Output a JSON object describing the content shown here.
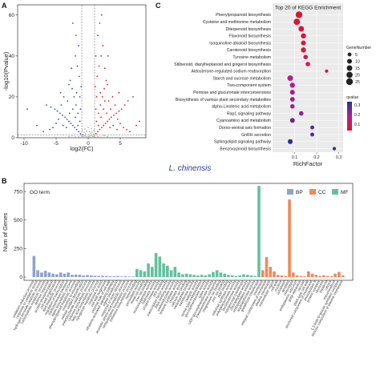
{
  "panels": {
    "a": "A",
    "b": "B",
    "c": "C"
  },
  "species_label": "L. chinensis",
  "volcano": {
    "type": "scatter",
    "xlabel": "log2(FC)",
    "ylabel": "-log10(Pvalue)",
    "xlim": [
      -11,
      9
    ],
    "ylim": [
      0,
      65
    ],
    "xticks": [
      -10,
      -5,
      0,
      5
    ],
    "yticks": [
      0,
      20,
      40,
      60
    ],
    "threshold_lines": {
      "x": [
        -1,
        1
      ],
      "y": 1.3
    },
    "colors": {
      "down": "#3b4fa8",
      "up": "#d8202a",
      "ns": "#b5b5b5"
    },
    "points": {
      "up": [
        [
          1.2,
          2
        ],
        [
          1.5,
          3
        ],
        [
          1.8,
          4
        ],
        [
          2.1,
          5
        ],
        [
          2.4,
          6
        ],
        [
          2.7,
          7
        ],
        [
          3.0,
          8
        ],
        [
          3.3,
          9
        ],
        [
          3.6,
          10
        ],
        [
          4.0,
          11
        ],
        [
          4.4,
          12
        ],
        [
          4.8,
          13
        ],
        [
          5.2,
          14
        ],
        [
          5.7,
          16
        ],
        [
          6.2,
          18
        ],
        [
          7.0,
          20
        ],
        [
          1.3,
          8
        ],
        [
          1.6,
          12
        ],
        [
          1.9,
          16
        ],
        [
          2.2,
          20
        ],
        [
          2.5,
          24
        ],
        [
          2.8,
          28
        ],
        [
          3.2,
          18
        ],
        [
          3.5,
          14
        ],
        [
          1.1,
          25
        ],
        [
          1.4,
          30
        ],
        [
          1.7,
          35
        ],
        [
          2.0,
          40
        ],
        [
          2.3,
          45
        ],
        [
          1.5,
          50
        ],
        [
          1.8,
          56
        ],
        [
          2.1,
          60
        ],
        [
          3.8,
          20
        ],
        [
          4.2,
          16
        ],
        [
          4.6,
          9
        ],
        [
          5.0,
          7
        ],
        [
          5.5,
          5
        ],
        [
          6.0,
          4
        ],
        [
          6.5,
          3
        ],
        [
          7.5,
          6
        ],
        [
          8.0,
          8
        ],
        [
          2.6,
          34
        ],
        [
          3.0,
          26
        ],
        [
          1.2,
          14
        ],
        [
          1.3,
          20
        ],
        [
          2.9,
          12
        ],
        [
          3.4,
          5
        ],
        [
          3.9,
          6
        ],
        [
          4.5,
          4
        ],
        [
          1.6,
          6
        ],
        [
          2.0,
          10
        ],
        [
          2.4,
          14
        ],
        [
          1.2,
          40
        ],
        [
          3.1,
          40
        ],
        [
          4.8,
          22
        ],
        [
          1.9,
          22
        ],
        [
          2.6,
          18
        ]
      ],
      "down": [
        [
          -1.2,
          2
        ],
        [
          -1.5,
          3
        ],
        [
          -1.8,
          4
        ],
        [
          -2.1,
          5
        ],
        [
          -2.4,
          6
        ],
        [
          -2.7,
          7
        ],
        [
          -3.0,
          8
        ],
        [
          -3.3,
          9
        ],
        [
          -3.6,
          10
        ],
        [
          -4.0,
          11
        ],
        [
          -4.4,
          12
        ],
        [
          -4.8,
          13
        ],
        [
          -5.2,
          14
        ],
        [
          -5.8,
          15
        ],
        [
          -6.5,
          16
        ],
        [
          -1.3,
          8
        ],
        [
          -1.6,
          12
        ],
        [
          -1.9,
          16
        ],
        [
          -2.2,
          20
        ],
        [
          -2.5,
          24
        ],
        [
          -2.8,
          28
        ],
        [
          -3.2,
          18
        ],
        [
          -1.1,
          25
        ],
        [
          -1.4,
          30
        ],
        [
          -1.7,
          35
        ],
        [
          -2.0,
          40
        ],
        [
          -1.5,
          45
        ],
        [
          -1.9,
          50
        ],
        [
          -2.4,
          56
        ],
        [
          -3.8,
          20
        ],
        [
          -4.2,
          16
        ],
        [
          -4.6,
          9
        ],
        [
          -5.0,
          7
        ],
        [
          -5.5,
          5
        ],
        [
          -6.0,
          4
        ],
        [
          -7.0,
          3
        ],
        [
          -8.0,
          6
        ],
        [
          -9.5,
          14
        ],
        [
          -2.6,
          34
        ],
        [
          -3.0,
          26
        ],
        [
          -1.2,
          14
        ],
        [
          -1.3,
          20
        ],
        [
          -2.9,
          12
        ],
        [
          -3.4,
          5
        ],
        [
          -3.9,
          6
        ],
        [
          -1.6,
          6
        ],
        [
          -2.0,
          10
        ],
        [
          -2.4,
          14
        ],
        [
          -4.3,
          22
        ],
        [
          -1.8,
          22
        ]
      ],
      "ns": [
        [
          -0.9,
          0.4
        ],
        [
          -0.7,
          0.8
        ],
        [
          -0.5,
          1.1
        ],
        [
          -0.3,
          0.6
        ],
        [
          -0.1,
          0.3
        ],
        [
          0.1,
          0.5
        ],
        [
          0.3,
          0.9
        ],
        [
          0.5,
          1.2
        ],
        [
          0.7,
          0.7
        ],
        [
          0.9,
          0.5
        ],
        [
          -0.8,
          1.6
        ],
        [
          -0.4,
          2.0
        ],
        [
          0.0,
          1.5
        ],
        [
          0.4,
          2.2
        ],
        [
          0.8,
          1.8
        ],
        [
          -0.6,
          2.6
        ],
        [
          0.6,
          2.8
        ],
        [
          -0.2,
          3.2
        ],
        [
          0.2,
          3.0
        ],
        [
          -1.0,
          1.0
        ],
        [
          1.0,
          1.0
        ],
        [
          -1.5,
          0.5
        ],
        [
          1.5,
          0.6
        ],
        [
          -2.0,
          0.4
        ],
        [
          2.0,
          0.3
        ],
        [
          -3.0,
          0.6
        ],
        [
          3.0,
          0.5
        ],
        [
          -0.9,
          3.5
        ],
        [
          0.9,
          3.6
        ],
        [
          -0.5,
          4.2
        ],
        [
          0.5,
          4.5
        ],
        [
          0.0,
          5.0
        ],
        [
          -0.7,
          0.2
        ],
        [
          0.7,
          0.2
        ],
        [
          -2.5,
          1.0
        ],
        [
          2.5,
          1.1
        ]
      ]
    }
  },
  "kegg": {
    "type": "scatter",
    "title": "Top 20 of KEGG Enrichment",
    "xlabel": "RichFactor",
    "xlim": [
      0,
      0.32
    ],
    "xticks": [
      0.1,
      0.2,
      0.3
    ],
    "pathways": [
      "Phenylpropanoid biosynthesis",
      "Cysteine and methionine metabolism",
      "Diterpenoid biosynthesis",
      "Flavonoid biosynthesis",
      "Isoquinoline alkaloid biosynthesis",
      "Carotenoid biosynthesis",
      "Tyrosine metabolism",
      "Stilbenoid, diarylheptanoid and gingerol biosynthesis",
      "Aldosterone-regulated sodium reabsorption",
      "Starch and sucrose metabolism",
      "Two-component system",
      "Pentose and glucuronate interconversions",
      "Biosynthesis of various plant secondary metabolites",
      "alpha-Linolenic acid metabolism",
      "Rap1 signaling pathway",
      "Cyanoamino acid metabolism",
      "Dorso-ventral axis formation",
      "GnRH secretion",
      "Sphingolipid signaling pathway",
      "Benzoxazinoid biosynthesis"
    ],
    "rich_factor": [
      0.12,
      0.11,
      0.13,
      0.14,
      0.14,
      0.14,
      0.15,
      0.16,
      0.245,
      0.08,
      0.09,
      0.09,
      0.09,
      0.09,
      0.13,
      0.09,
      0.18,
      0.18,
      0.08,
      0.28
    ],
    "gene_number": [
      25,
      22,
      15,
      12,
      10,
      12,
      8,
      8,
      3,
      15,
      12,
      10,
      9,
      8,
      8,
      10,
      5,
      5,
      10,
      3
    ],
    "qvalue": [
      0.02,
      0.03,
      0.04,
      0.05,
      0.05,
      0.06,
      0.08,
      0.08,
      0.06,
      0.2,
      0.2,
      0.22,
      0.22,
      0.22,
      0.25,
      0.3,
      0.35,
      0.35,
      0.4,
      0.4
    ],
    "legend": {
      "size_title": "GeneNumber",
      "size_levels": [
        5,
        10,
        15,
        20,
        25
      ],
      "color_title": "qvalue",
      "color_ticks": [
        0.3,
        0.2,
        0.1
      ]
    },
    "colors": {
      "low": "#e0152a",
      "mid": "#b01e8e",
      "high": "#2a2f8f"
    }
  },
  "go": {
    "type": "bar",
    "panel_title": "GO term",
    "ylabel": "Num of Genes",
    "ylim": [
      0,
      800
    ],
    "yticks": [
      0,
      250,
      500,
      750
    ],
    "legend": [
      {
        "label": "BP",
        "color": "#8ea3cc"
      },
      {
        "label": "CC",
        "color": "#ef8a5a"
      },
      {
        "label": "MF",
        "color": "#62c2a0"
      }
    ],
    "bp": {
      "categories": [
        "oxidation-reduction process",
        "response to oxidative stress",
        "hydrogen peroxide catabolic process",
        "carbohydrate metabolic process",
        "defense response",
        "protein phosphorylation",
        "cell wall organization",
        "lipid metabolic process",
        "regulation of transcription",
        "transmembrane transport",
        "lignin biosynthetic process",
        "phenylpropanoid metabolic process",
        "response to wounding",
        "cellular oxidant detoxification",
        "polysaccharide catabolic process",
        "cellulose biosynthetic process",
        "fatty acid biosynthetic process",
        "xyloglucan metabolic process",
        "response to auxin",
        "cell wall biogenesis",
        "external side of cell wall",
        "ethylene-activated signaling pathway",
        "signal transduction",
        "response to biotic stimulus",
        "aromatic amino acid metabolic process",
        "sesquiterpene biosynthetic process",
        "trehalose biosynthetic process"
      ],
      "values": [
        185,
        60,
        40,
        55,
        40,
        30,
        25,
        40,
        30,
        40,
        20,
        22,
        20,
        15,
        18,
        15,
        12,
        10,
        12,
        10,
        8,
        8,
        10,
        6,
        8,
        6,
        5
      ]
    },
    "mf": {
      "categories": [
        "heme binding",
        "peroxidase activity",
        "metal ion binding",
        "iron ion binding",
        "monooxygenase activity",
        "hydrolase activity",
        "protein kinase activity",
        "ATP binding",
        "transcription factor activity",
        "DNA-binding activity",
        "oxidoreductase activity",
        "terpene synthase activity",
        "chitinase activity",
        "calcium ion binding",
        "carbohydrate binding",
        "transferase activity",
        "catalytic activity",
        "serine-type endopeptidase",
        "glucosyltransferase activity",
        "lyase activity",
        "UDP-glycosyltransferase activity",
        "transmembrane transporter",
        "magnesium ion binding",
        "zinc ion binding",
        "ADP binding",
        "cellulose synthase activity",
        "polygalacturonase activity",
        "pectinesterase activity",
        "xyloglucosyl transferase",
        "chlorophyllase activity",
        "endopeptidase inhibitor",
        "acyltransferase activity",
        "glutathione transferase"
      ],
      "values": [
        70,
        60,
        50,
        120,
        90,
        210,
        180,
        120,
        100,
        60,
        90,
        40,
        25,
        30,
        25,
        20,
        15,
        20,
        15,
        25,
        45,
        60,
        40,
        30,
        20,
        15,
        10,
        15,
        25,
        20,
        15,
        10,
        900
      ]
    },
    "cc": {
      "categories": [
        "membrane",
        "integral component of membrane",
        "plasma membrane",
        "extracellular region",
        "cell wall",
        "nucleus",
        "cytoplasm",
        "apoplast",
        "chloroplast",
        "endoplasmic reticulum",
        "golgi apparatus",
        "vacuole",
        "plant-type cell wall",
        "anchored component of membrane",
        "photosystem II",
        "protein complex",
        "ribosome",
        "thylakoid",
        "cytosol",
        "mitochondrion",
        "1,3-beta-D-glucan synthase complex",
        "intrinsic component of plasma membrane"
      ],
      "values": [
        60,
        175,
        90,
        50,
        20,
        15,
        10,
        680,
        40,
        15,
        10,
        8,
        50,
        30,
        20,
        10,
        15,
        10,
        8,
        30,
        45,
        15
      ]
    }
  }
}
